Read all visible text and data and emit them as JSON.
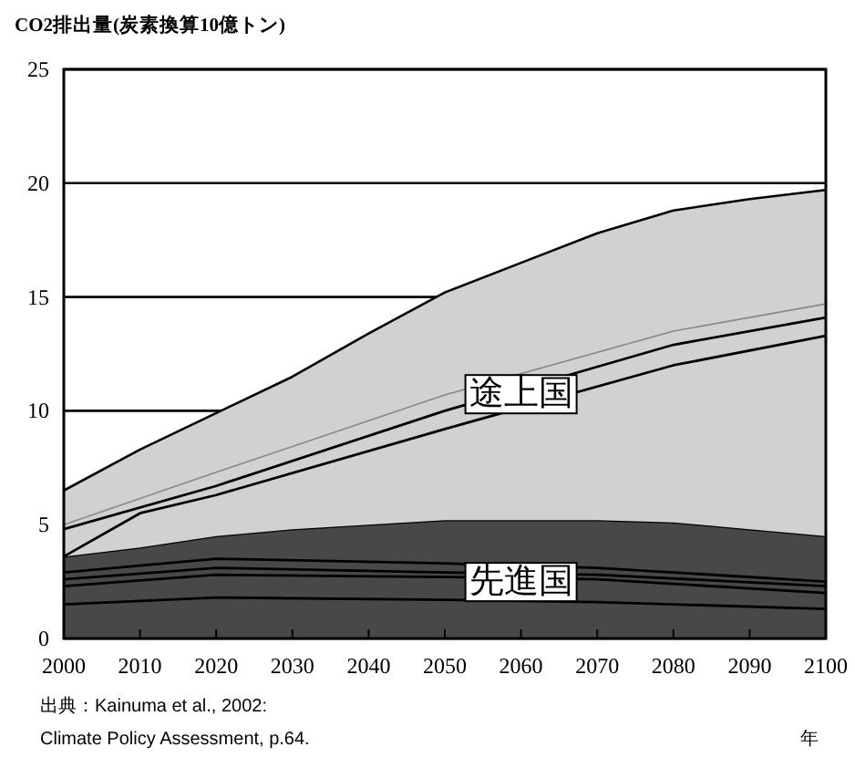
{
  "chart_data": {
    "type": "area",
    "stacked": true,
    "ylabel": "CO2排出量(炭素換算10億トン)",
    "xlabel": "年",
    "x": [
      2000,
      2010,
      2020,
      2030,
      2040,
      2050,
      2060,
      2070,
      2080,
      2090,
      2100
    ],
    "series": [
      {
        "name": "先進国",
        "color": "#48484a",
        "values": [
          3.6,
          4.0,
          4.5,
          4.8,
          5.0,
          5.2,
          5.2,
          5.2,
          5.1,
          4.8,
          4.5
        ]
      },
      {
        "name": "途上国",
        "color": "#d0d1d3",
        "values": [
          2.9,
          4.3,
          5.4,
          6.7,
          8.4,
          10.0,
          11.3,
          12.6,
          13.7,
          14.5,
          15.2
        ]
      },
      {
        "type": "line",
        "color": "#000000",
        "x": [
          2000,
          2020,
          2050,
          2070,
          2100
        ],
        "values": [
          1.5,
          1.8,
          1.7,
          1.6,
          1.3
        ]
      },
      {
        "type": "line",
        "color": "#000000",
        "x": [
          2000,
          2020,
          2050,
          2070,
          2100
        ],
        "values": [
          2.3,
          2.8,
          2.7,
          2.6,
          2.0
        ]
      },
      {
        "type": "line",
        "color": "#000000",
        "x": [
          2000,
          2020,
          2050,
          2070,
          2100
        ],
        "values": [
          2.6,
          3.1,
          2.9,
          2.8,
          2.3
        ]
      },
      {
        "type": "line",
        "color": "#000000",
        "x": [
          2000,
          2020,
          2050,
          2070,
          2100
        ],
        "values": [
          2.9,
          3.5,
          3.3,
          3.1,
          2.5
        ]
      },
      {
        "type": "line",
        "color": "#000000",
        "x": [
          2000,
          2010,
          2020,
          2050,
          2080,
          2100
        ],
        "values": [
          3.6,
          5.5,
          6.3,
          9.2,
          12.0,
          13.3
        ]
      },
      {
        "type": "line",
        "color": "#000000",
        "x": [
          2000,
          2020,
          2050,
          2080,
          2100
        ],
        "values": [
          4.8,
          6.7,
          10.0,
          12.9,
          14.1
        ]
      },
      {
        "type": "line",
        "color": "#888888",
        "x": [
          2000,
          2020,
          2050,
          2080,
          2100
        ],
        "values": [
          5.0,
          7.3,
          10.7,
          13.5,
          14.7
        ]
      }
    ],
    "xlim": [
      2000,
      2100
    ],
    "xticks": [
      2000,
      2010,
      2020,
      2030,
      2040,
      2050,
      2060,
      2070,
      2080,
      2090,
      2100
    ],
    "ylim": [
      0,
      25
    ],
    "yticks": [
      0,
      5,
      10,
      15,
      20,
      25
    ],
    "grid": "y",
    "annotations": [
      "出典：Kainuma et al., 2002:",
      "Climate Policy Assessment, p.64."
    ]
  }
}
